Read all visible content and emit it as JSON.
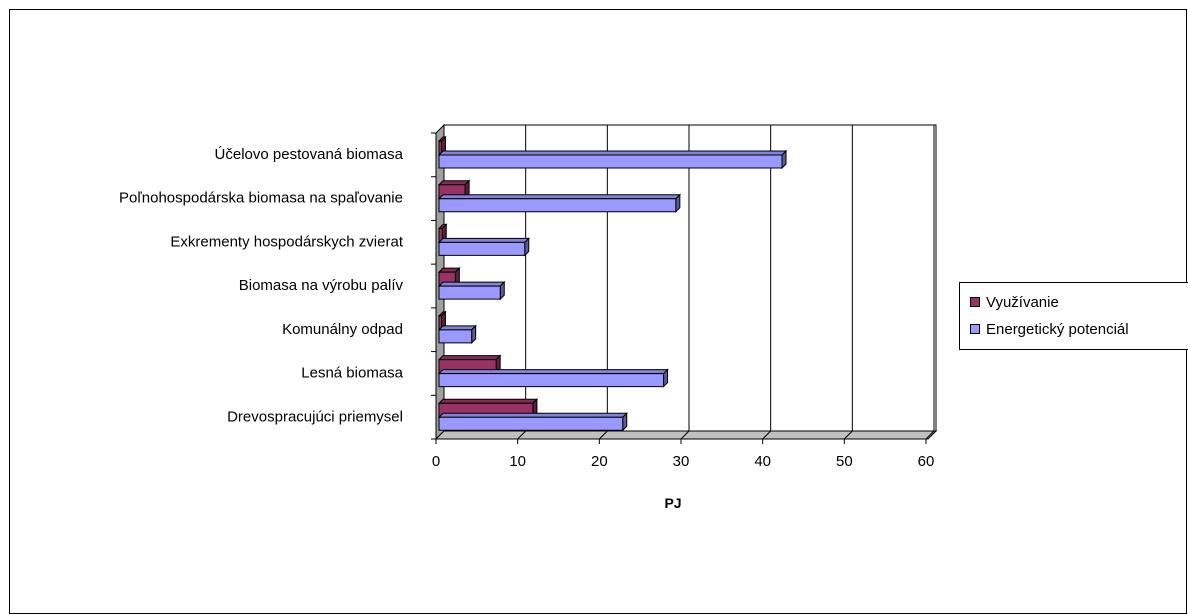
{
  "chart_data": {
    "type": "bar",
    "orientation": "horizontal",
    "title": "",
    "xlabel": "PJ",
    "ylabel": "",
    "xlim": [
      0,
      60
    ],
    "x_ticks": [
      "0",
      "10",
      "20",
      "30",
      "40",
      "50",
      "60"
    ],
    "grid": true,
    "legend_position": "right",
    "categories": [
      "Účelovo pestovaná biomasa",
      "Poľnohospodárska biomasa na spaľovanie",
      "Exkrementy hospodárskych zvierat",
      "Biomasa na výrobu palív",
      "Komunálny odpad",
      "Lesná biomasa",
      "Drevospracujúci priemysel"
    ],
    "series": [
      {
        "name": "Využívanie",
        "color": "#993366",
        "values": [
          0.3,
          3.2,
          0.4,
          2.0,
          0.3,
          7.0,
          11.5
        ]
      },
      {
        "name": "Energetický potenciál",
        "color": "#9999FF",
        "values": [
          42,
          29,
          10.5,
          7.5,
          4,
          27.5,
          22.5
        ]
      }
    ]
  }
}
